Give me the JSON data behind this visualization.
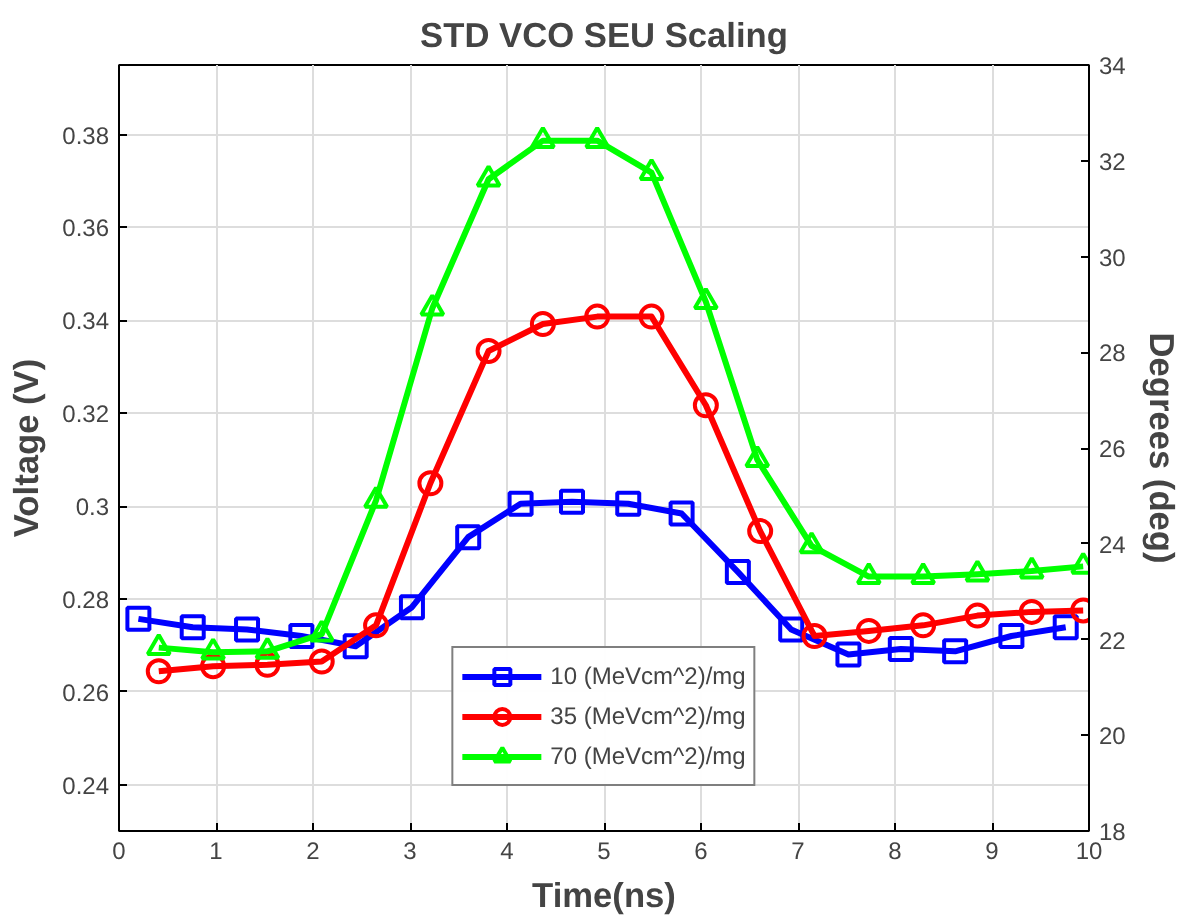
{
  "chart_data": {
    "type": "line",
    "title": "STD VCO SEU Scaling",
    "xlabel": "Time(ns)",
    "ylabel": "Voltage (V)",
    "y2label": "Degrees (deg)",
    "xlim": [
      0,
      10
    ],
    "xticks": [
      0,
      1,
      2,
      3,
      4,
      5,
      6,
      7,
      8,
      9,
      10
    ],
    "ylim": [
      0.23,
      0.395
    ],
    "yticks": [
      0.24,
      0.26,
      0.28,
      0.3,
      0.32,
      0.34,
      0.36,
      0.38
    ],
    "y2lim": [
      18,
      34
    ],
    "y2ticks": [
      18,
      20,
      22,
      24,
      26,
      28,
      30,
      32,
      34
    ],
    "grid": true,
    "legend": "bottom",
    "line_style": "solid",
    "series": [
      {
        "name": "10 (MeVcm^2)/mg",
        "color": "#0000ff",
        "marker": "square",
        "x": [
          0.2,
          0.76,
          1.32,
          1.88,
          2.44,
          3.02,
          3.6,
          4.14,
          4.67,
          5.25,
          5.8,
          6.38,
          6.93,
          7.52,
          8.06,
          8.62,
          9.2,
          9.76
        ],
        "values": [
          0.2757,
          0.2739,
          0.2734,
          0.272,
          0.2698,
          0.2782,
          0.2933,
          0.3005,
          0.3009,
          0.3005,
          0.2984,
          0.2858,
          0.2734,
          0.268,
          0.2692,
          0.2687,
          0.272,
          0.2739
        ]
      },
      {
        "name": "35 (MeVcm^2)/mg",
        "color": "#ff0000",
        "marker": "circle",
        "x": [
          0.41,
          0.97,
          1.53,
          2.09,
          2.65,
          3.21,
          3.81,
          4.37,
          4.93,
          5.49,
          6.05,
          6.61,
          7.17,
          7.73,
          8.29,
          8.85,
          9.41,
          9.94
        ],
        "values": [
          0.2644,
          0.2655,
          0.2658,
          0.2665,
          0.2743,
          0.3049,
          0.3334,
          0.3392,
          0.3408,
          0.3408,
          0.3217,
          0.2946,
          0.272,
          0.2731,
          0.2743,
          0.2764,
          0.2772,
          0.2775
        ]
      },
      {
        "name": "70 (MeVcm^2)/mg",
        "color": "#00ff00",
        "marker": "triangle",
        "x": [
          0.41,
          0.97,
          1.53,
          2.09,
          2.65,
          3.23,
          3.81,
          4.37,
          4.93,
          5.49,
          6.05,
          6.58,
          7.14,
          7.73,
          8.29,
          8.85,
          9.41,
          9.94
        ],
        "values": [
          0.2695,
          0.2685,
          0.2687,
          0.2724,
          0.3012,
          0.3426,
          0.3704,
          0.3787,
          0.3787,
          0.3718,
          0.344,
          0.31,
          0.2914,
          0.2848,
          0.2848,
          0.2853,
          0.286,
          0.287
        ]
      }
    ]
  }
}
